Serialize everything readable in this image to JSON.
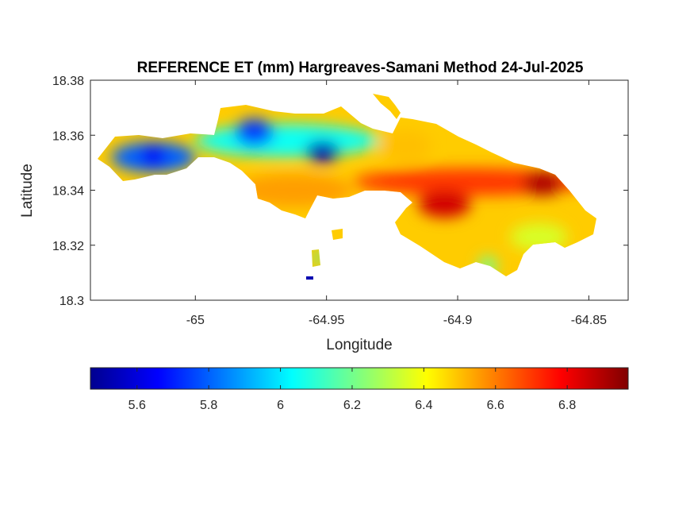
{
  "chart_data": {
    "type": "heatmap",
    "title": "REFERENCE ET (mm) Hargreaves-Samani Method  24-Jul-2025",
    "xlabel": "Longitude",
    "ylabel": "Latitude",
    "xlim": [
      -65.04,
      -64.835
    ],
    "ylim": [
      18.3,
      18.38
    ],
    "xticks": [
      -65,
      -64.95,
      -64.9,
      -64.85
    ],
    "xtick_labels": [
      "-65",
      "-64.95",
      "-64.9",
      "-64.85"
    ],
    "yticks": [
      18.3,
      18.32,
      18.34,
      18.36,
      18.38
    ],
    "ytick_labels": [
      "18.3",
      "18.32",
      "18.34",
      "18.36",
      "18.38"
    ],
    "grid": false,
    "colormap": "jet",
    "colorbar": {
      "location": "bottom",
      "range": [
        5.47,
        6.97
      ],
      "ticks": [
        5.6,
        5.8,
        6.0,
        6.2,
        6.4,
        6.6,
        6.8
      ],
      "tick_labels": [
        "5.6",
        "5.8",
        "6",
        "6.2",
        "6.4",
        "6.6",
        "6.8"
      ]
    },
    "regions": [
      {
        "lat": [
          18.3465,
          18.3575
        ],
        "lon": [
          -65.032,
          -65.0
        ],
        "value": 5.8
      },
      {
        "lat": [
          18.3485,
          18.3565
        ],
        "lon": [
          -65.021,
          -65.011
        ],
        "value": 5.65
      },
      {
        "lat": [
          18.352,
          18.364
        ],
        "lon": [
          -65.0,
          -64.93
        ],
        "value": 6.05
      },
      {
        "lat": [
          18.356,
          18.366
        ],
        "lon": [
          -64.985,
          -64.97
        ],
        "value": 5.75
      },
      {
        "lat": [
          18.35,
          18.358
        ],
        "lon": [
          -64.958,
          -64.945
        ],
        "value": 5.55
      },
      {
        "lat": [
          18.334,
          18.346
        ],
        "lon": [
          -64.985,
          -64.94
        ],
        "value": 6.55
      },
      {
        "lat": [
          18.338,
          18.348
        ],
        "lon": [
          -64.94,
          -64.85
        ],
        "value": 6.7
      },
      {
        "lat": [
          18.33,
          18.34
        ],
        "lon": [
          -64.915,
          -64.895
        ],
        "value": 6.85
      },
      {
        "lat": [
          18.338,
          18.347
        ],
        "lon": [
          -64.875,
          -64.86
        ],
        "value": 6.9
      },
      {
        "lat": [
          18.35,
          18.362
        ],
        "lon": [
          -64.93,
          -64.91
        ],
        "value": 6.5
      },
      {
        "lat": [
          18.318,
          18.328
        ],
        "lon": [
          -64.88,
          -64.858
        ],
        "value": 6.35
      },
      {
        "lat": [
          18.309,
          18.316
        ],
        "lon": [
          -64.892,
          -64.885
        ],
        "value": 6.2
      },
      {
        "lat": [
          18.313,
          18.318
        ],
        "lon": [
          -64.9545,
          -64.9515
        ],
        "value": 6.05
      },
      {
        "lat": [
          18.3075,
          18.309
        ],
        "lon": [
          -64.957,
          -64.955
        ],
        "value": 5.5
      }
    ]
  }
}
